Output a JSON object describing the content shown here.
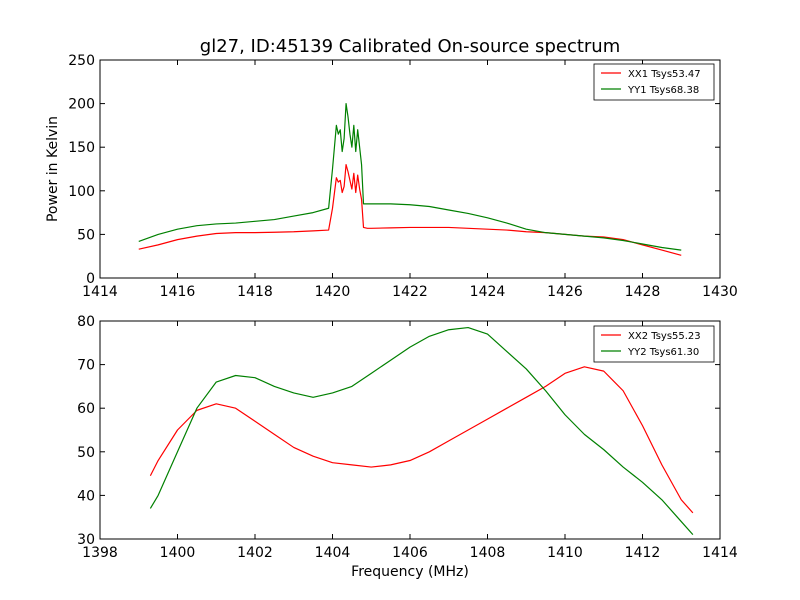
{
  "chart_data": [
    {
      "type": "line",
      "title": "gl27, ID:45139 Calibrated On-source spectrum",
      "xlabel": "",
      "ylabel": "Power in Kelvin",
      "xlim": [
        1414,
        1430
      ],
      "ylim": [
        0,
        250
      ],
      "xticks": [
        1414,
        1416,
        1418,
        1420,
        1422,
        1424,
        1426,
        1428,
        1430
      ],
      "yticks": [
        0,
        50,
        100,
        150,
        200,
        250
      ],
      "grid": false,
      "legend": "top-right",
      "series": [
        {
          "name": "XX1 Tsys53.47",
          "color": "#ff0000",
          "x": [
            1415.0,
            1415.5,
            1416.0,
            1416.5,
            1417.0,
            1417.5,
            1418.0,
            1418.5,
            1419.0,
            1419.5,
            1419.9,
            1420.0,
            1420.1,
            1420.15,
            1420.2,
            1420.25,
            1420.3,
            1420.35,
            1420.4,
            1420.45,
            1420.5,
            1420.55,
            1420.6,
            1420.65,
            1420.7,
            1420.75,
            1420.8,
            1420.9,
            1421.0,
            1421.5,
            1422.0,
            1422.5,
            1423.0,
            1423.5,
            1424.0,
            1424.5,
            1425.0,
            1425.5,
            1426.0,
            1426.5,
            1427.0,
            1427.5,
            1428.0,
            1428.5,
            1429.0
          ],
          "y": [
            33,
            38,
            44,
            48,
            51,
            52,
            52,
            52.5,
            53,
            54,
            55,
            80,
            115,
            110,
            112,
            98,
            105,
            130,
            122,
            112,
            102,
            120,
            98,
            118,
            102,
            90,
            58,
            57,
            57,
            57.5,
            58,
            58,
            58,
            57,
            56,
            55,
            53,
            52,
            50,
            48,
            47,
            44,
            38,
            32,
            26
          ]
        },
        {
          "name": "YY1 Tsys68.38",
          "color": "#008000",
          "x": [
            1415.0,
            1415.5,
            1416.0,
            1416.5,
            1417.0,
            1417.5,
            1418.0,
            1418.5,
            1419.0,
            1419.5,
            1419.9,
            1420.0,
            1420.1,
            1420.15,
            1420.2,
            1420.25,
            1420.3,
            1420.35,
            1420.4,
            1420.45,
            1420.5,
            1420.55,
            1420.6,
            1420.65,
            1420.7,
            1420.75,
            1420.8,
            1420.9,
            1421.0,
            1421.5,
            1422.0,
            1422.5,
            1423.0,
            1423.5,
            1424.0,
            1424.5,
            1425.0,
            1425.5,
            1426.0,
            1426.5,
            1427.0,
            1427.5,
            1428.0,
            1428.5,
            1429.0
          ],
          "y": [
            42,
            50,
            56,
            60,
            62,
            63,
            65,
            67,
            71,
            75,
            80,
            125,
            175,
            165,
            170,
            145,
            160,
            200,
            185,
            165,
            150,
            175,
            145,
            170,
            150,
            130,
            85,
            85,
            85,
            85,
            84,
            82,
            78,
            74,
            69,
            63,
            56,
            52,
            50,
            48,
            46,
            43,
            39,
            35,
            32
          ]
        }
      ]
    },
    {
      "type": "line",
      "title": "",
      "xlabel": "Frequency (MHz)",
      "ylabel": "",
      "xlim": [
        1398,
        1414
      ],
      "ylim": [
        30,
        80
      ],
      "xticks": [
        1398,
        1400,
        1402,
        1404,
        1406,
        1408,
        1410,
        1412,
        1414
      ],
      "yticks": [
        30,
        40,
        50,
        60,
        70,
        80
      ],
      "grid": false,
      "legend": "top-right",
      "series": [
        {
          "name": "XX2 Tsys55.23",
          "color": "#ff0000",
          "x": [
            1399.3,
            1399.5,
            1400.0,
            1400.5,
            1401.0,
            1401.5,
            1402.0,
            1402.5,
            1403.0,
            1403.5,
            1404.0,
            1404.5,
            1405.0,
            1405.5,
            1406.0,
            1406.5,
            1407.0,
            1407.5,
            1408.0,
            1408.5,
            1409.0,
            1409.5,
            1410.0,
            1410.5,
            1411.0,
            1411.5,
            1412.0,
            1412.5,
            1413.0,
            1413.3
          ],
          "y": [
            44.5,
            48,
            55,
            59.5,
            61,
            60,
            57,
            54,
            51,
            49,
            47.5,
            47,
            46.5,
            47,
            48,
            50,
            52.5,
            55,
            57.5,
            60,
            62.5,
            65,
            68,
            69.5,
            68.5,
            64,
            56,
            47,
            39,
            36
          ]
        },
        {
          "name": "YY2 Tsys61.30",
          "color": "#008000",
          "x": [
            1399.3,
            1399.5,
            1400.0,
            1400.5,
            1401.0,
            1401.5,
            1402.0,
            1402.5,
            1403.0,
            1403.5,
            1404.0,
            1404.5,
            1405.0,
            1405.5,
            1406.0,
            1406.5,
            1407.0,
            1407.5,
            1408.0,
            1408.5,
            1409.0,
            1409.5,
            1410.0,
            1410.5,
            1411.0,
            1411.5,
            1412.0,
            1412.5,
            1413.0,
            1413.3
          ],
          "y": [
            37,
            40,
            50,
            60,
            66,
            67.5,
            67,
            65,
            63.5,
            62.5,
            63.5,
            65,
            68,
            71,
            74,
            76.5,
            78,
            78.5,
            77,
            73,
            69,
            64,
            58.5,
            54,
            50.5,
            46.5,
            43,
            39,
            34,
            31
          ]
        }
      ]
    }
  ]
}
